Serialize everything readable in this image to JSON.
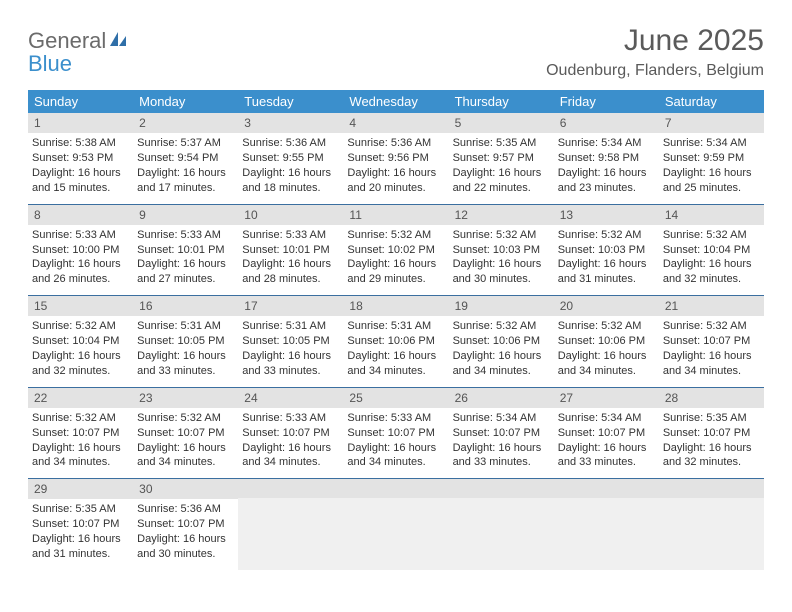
{
  "logo": {
    "text1": "General",
    "text2": "Blue",
    "color1": "#6b6b6b",
    "color2": "#3b8fcc",
    "icon_color": "#2f6fa8"
  },
  "title": "June 2025",
  "location": "Oudenburg, Flanders, Belgium",
  "colors": {
    "header_bg": "#3b8fcc",
    "header_text": "#ffffff",
    "daynum_bg": "#e3e3e3",
    "daynum_text": "#555555",
    "body_text": "#333333",
    "row_border": "#3b6fa0",
    "empty_bg": "#f0f0f0",
    "page_bg": "#ffffff"
  },
  "dow": [
    "Sunday",
    "Monday",
    "Tuesday",
    "Wednesday",
    "Thursday",
    "Friday",
    "Saturday"
  ],
  "weeks": [
    [
      {
        "n": "1",
        "sr": "Sunrise: 5:38 AM",
        "ss": "Sunset: 9:53 PM",
        "d1": "Daylight: 16 hours",
        "d2": "and 15 minutes."
      },
      {
        "n": "2",
        "sr": "Sunrise: 5:37 AM",
        "ss": "Sunset: 9:54 PM",
        "d1": "Daylight: 16 hours",
        "d2": "and 17 minutes."
      },
      {
        "n": "3",
        "sr": "Sunrise: 5:36 AM",
        "ss": "Sunset: 9:55 PM",
        "d1": "Daylight: 16 hours",
        "d2": "and 18 minutes."
      },
      {
        "n": "4",
        "sr": "Sunrise: 5:36 AM",
        "ss": "Sunset: 9:56 PM",
        "d1": "Daylight: 16 hours",
        "d2": "and 20 minutes."
      },
      {
        "n": "5",
        "sr": "Sunrise: 5:35 AM",
        "ss": "Sunset: 9:57 PM",
        "d1": "Daylight: 16 hours",
        "d2": "and 22 minutes."
      },
      {
        "n": "6",
        "sr": "Sunrise: 5:34 AM",
        "ss": "Sunset: 9:58 PM",
        "d1": "Daylight: 16 hours",
        "d2": "and 23 minutes."
      },
      {
        "n": "7",
        "sr": "Sunrise: 5:34 AM",
        "ss": "Sunset: 9:59 PM",
        "d1": "Daylight: 16 hours",
        "d2": "and 25 minutes."
      }
    ],
    [
      {
        "n": "8",
        "sr": "Sunrise: 5:33 AM",
        "ss": "Sunset: 10:00 PM",
        "d1": "Daylight: 16 hours",
        "d2": "and 26 minutes."
      },
      {
        "n": "9",
        "sr": "Sunrise: 5:33 AM",
        "ss": "Sunset: 10:01 PM",
        "d1": "Daylight: 16 hours",
        "d2": "and 27 minutes."
      },
      {
        "n": "10",
        "sr": "Sunrise: 5:33 AM",
        "ss": "Sunset: 10:01 PM",
        "d1": "Daylight: 16 hours",
        "d2": "and 28 minutes."
      },
      {
        "n": "11",
        "sr": "Sunrise: 5:32 AM",
        "ss": "Sunset: 10:02 PM",
        "d1": "Daylight: 16 hours",
        "d2": "and 29 minutes."
      },
      {
        "n": "12",
        "sr": "Sunrise: 5:32 AM",
        "ss": "Sunset: 10:03 PM",
        "d1": "Daylight: 16 hours",
        "d2": "and 30 minutes."
      },
      {
        "n": "13",
        "sr": "Sunrise: 5:32 AM",
        "ss": "Sunset: 10:03 PM",
        "d1": "Daylight: 16 hours",
        "d2": "and 31 minutes."
      },
      {
        "n": "14",
        "sr": "Sunrise: 5:32 AM",
        "ss": "Sunset: 10:04 PM",
        "d1": "Daylight: 16 hours",
        "d2": "and 32 minutes."
      }
    ],
    [
      {
        "n": "15",
        "sr": "Sunrise: 5:32 AM",
        "ss": "Sunset: 10:04 PM",
        "d1": "Daylight: 16 hours",
        "d2": "and 32 minutes."
      },
      {
        "n": "16",
        "sr": "Sunrise: 5:31 AM",
        "ss": "Sunset: 10:05 PM",
        "d1": "Daylight: 16 hours",
        "d2": "and 33 minutes."
      },
      {
        "n": "17",
        "sr": "Sunrise: 5:31 AM",
        "ss": "Sunset: 10:05 PM",
        "d1": "Daylight: 16 hours",
        "d2": "and 33 minutes."
      },
      {
        "n": "18",
        "sr": "Sunrise: 5:31 AM",
        "ss": "Sunset: 10:06 PM",
        "d1": "Daylight: 16 hours",
        "d2": "and 34 minutes."
      },
      {
        "n": "19",
        "sr": "Sunrise: 5:32 AM",
        "ss": "Sunset: 10:06 PM",
        "d1": "Daylight: 16 hours",
        "d2": "and 34 minutes."
      },
      {
        "n": "20",
        "sr": "Sunrise: 5:32 AM",
        "ss": "Sunset: 10:06 PM",
        "d1": "Daylight: 16 hours",
        "d2": "and 34 minutes."
      },
      {
        "n": "21",
        "sr": "Sunrise: 5:32 AM",
        "ss": "Sunset: 10:07 PM",
        "d1": "Daylight: 16 hours",
        "d2": "and 34 minutes."
      }
    ],
    [
      {
        "n": "22",
        "sr": "Sunrise: 5:32 AM",
        "ss": "Sunset: 10:07 PM",
        "d1": "Daylight: 16 hours",
        "d2": "and 34 minutes."
      },
      {
        "n": "23",
        "sr": "Sunrise: 5:32 AM",
        "ss": "Sunset: 10:07 PM",
        "d1": "Daylight: 16 hours",
        "d2": "and 34 minutes."
      },
      {
        "n": "24",
        "sr": "Sunrise: 5:33 AM",
        "ss": "Sunset: 10:07 PM",
        "d1": "Daylight: 16 hours",
        "d2": "and 34 minutes."
      },
      {
        "n": "25",
        "sr": "Sunrise: 5:33 AM",
        "ss": "Sunset: 10:07 PM",
        "d1": "Daylight: 16 hours",
        "d2": "and 34 minutes."
      },
      {
        "n": "26",
        "sr": "Sunrise: 5:34 AM",
        "ss": "Sunset: 10:07 PM",
        "d1": "Daylight: 16 hours",
        "d2": "and 33 minutes."
      },
      {
        "n": "27",
        "sr": "Sunrise: 5:34 AM",
        "ss": "Sunset: 10:07 PM",
        "d1": "Daylight: 16 hours",
        "d2": "and 33 minutes."
      },
      {
        "n": "28",
        "sr": "Sunrise: 5:35 AM",
        "ss": "Sunset: 10:07 PM",
        "d1": "Daylight: 16 hours",
        "d2": "and 32 minutes."
      }
    ],
    [
      {
        "n": "29",
        "sr": "Sunrise: 5:35 AM",
        "ss": "Sunset: 10:07 PM",
        "d1": "Daylight: 16 hours",
        "d2": "and 31 minutes."
      },
      {
        "n": "30",
        "sr": "Sunrise: 5:36 AM",
        "ss": "Sunset: 10:07 PM",
        "d1": "Daylight: 16 hours",
        "d2": "and 30 minutes."
      },
      null,
      null,
      null,
      null,
      null
    ]
  ]
}
